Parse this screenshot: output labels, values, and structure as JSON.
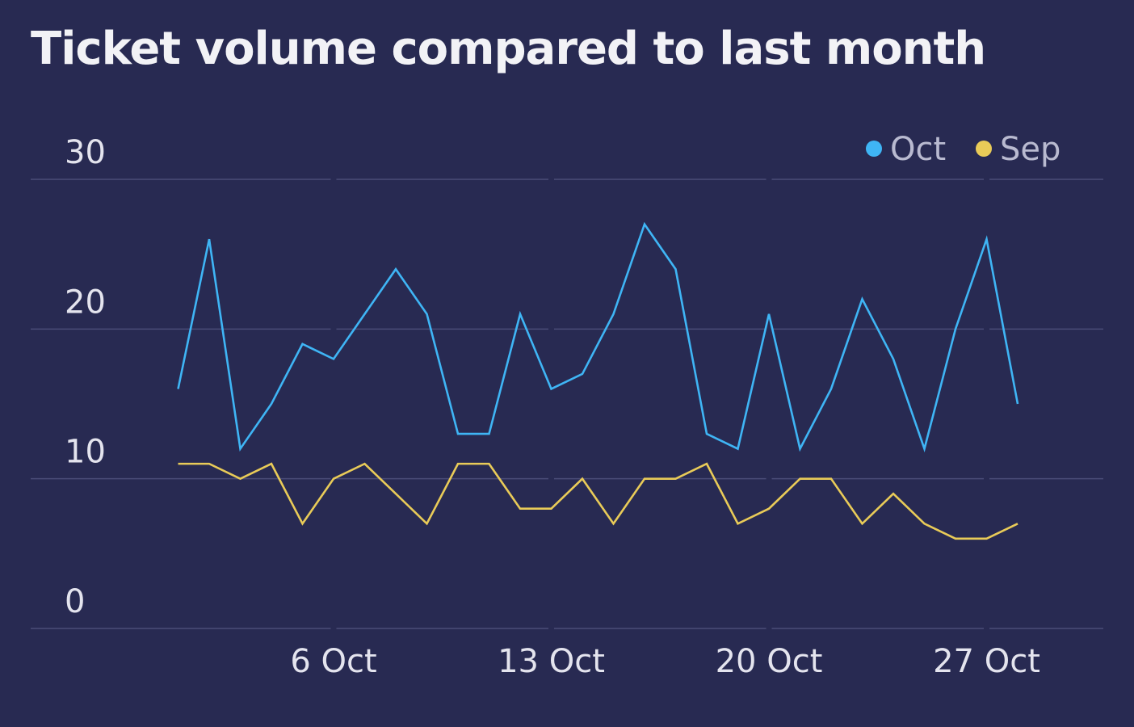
{
  "chart_data": {
    "type": "line",
    "title": "Ticket volume compared to last month",
    "xlabel": "",
    "ylabel": "",
    "ylim": [
      0,
      30
    ],
    "y_ticks": [
      "0",
      "10",
      "20",
      "30"
    ],
    "x_ticks": [
      {
        "day": 6,
        "label": "6 Oct"
      },
      {
        "day": 13,
        "label": "13 Oct"
      },
      {
        "day": 20,
        "label": "20 Oct"
      },
      {
        "day": 27,
        "label": "27 Oct"
      }
    ],
    "grid": true,
    "legend_position": "top-right",
    "x_days": [
      1,
      2,
      3,
      4,
      5,
      6,
      7,
      8,
      9,
      10,
      11,
      12,
      13,
      14,
      15,
      16,
      17,
      18,
      19,
      20,
      21,
      22,
      23,
      24,
      25,
      26,
      27,
      28
    ],
    "series": [
      {
        "name": "Oct",
        "color": "#3FB5F5",
        "values": [
          16,
          26,
          12,
          15,
          19,
          18,
          21,
          24,
          21,
          13,
          13,
          21,
          16,
          17,
          21,
          27,
          24,
          13,
          12,
          21,
          12,
          16,
          22,
          18,
          12,
          20,
          26,
          15
        ]
      },
      {
        "name": "Sep",
        "color": "#E9CB58",
        "values": [
          11,
          11,
          10,
          11,
          7,
          10,
          11,
          9,
          7,
          11,
          11,
          8,
          8,
          10,
          7,
          10,
          10,
          11,
          7,
          8,
          10,
          10,
          7,
          9,
          7,
          6,
          6,
          7
        ]
      }
    ]
  }
}
